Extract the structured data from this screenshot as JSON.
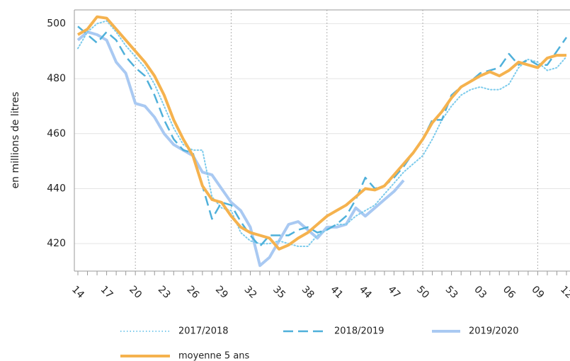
{
  "chart_data": {
    "type": "line",
    "y_label": "en millions de litres",
    "categories": [
      "14",
      null,
      null,
      "17",
      null,
      null,
      "20",
      null,
      null,
      "23",
      null,
      null,
      "26",
      null,
      null,
      "29",
      null,
      null,
      "32",
      null,
      null,
      "35",
      null,
      null,
      "38",
      null,
      null,
      "41",
      null,
      null,
      "44",
      null,
      null,
      "47",
      null,
      null,
      "50",
      null,
      null,
      "53",
      null,
      null,
      "03",
      null,
      null,
      "06",
      null,
      null,
      "09",
      null,
      null,
      "12"
    ],
    "ylim": [
      410,
      505
    ],
    "yticks": [
      420,
      440,
      460,
      480,
      500
    ],
    "grid": true,
    "legend": "bottom",
    "series": [
      {
        "name": "2017/2018",
        "color": "#7ccbec",
        "style": "dotted",
        "values": [
          491,
          497,
          500,
          501,
          497,
          492,
          488,
          484,
          478,
          470,
          462,
          456,
          454,
          454,
          437,
          433,
          432,
          424,
          421,
          420,
          420,
          421,
          420,
          419,
          419,
          423,
          425,
          427,
          427,
          430,
          432,
          434,
          438,
          442,
          446,
          449,
          452,
          458,
          465,
          470,
          474,
          476,
          477,
          476,
          476,
          478,
          484,
          487,
          486,
          483,
          484,
          488
        ]
      },
      {
        "name": "2018/2019",
        "color": "#4fb0da",
        "style": "dashed",
        "values": [
          499,
          496,
          493,
          497,
          494,
          488,
          484,
          481,
          474,
          465,
          458,
          454,
          453,
          441,
          429,
          435,
          434,
          428,
          423,
          419,
          423,
          423,
          423,
          425,
          426,
          424,
          425,
          427,
          430,
          436,
          444,
          440,
          441,
          444,
          448,
          453,
          458,
          465,
          465,
          474,
          477,
          479,
          482,
          483,
          484,
          489,
          485,
          487,
          485,
          485,
          490,
          495
        ]
      },
      {
        "name": "2019/2020",
        "color": "#a9c9f2",
        "style": "solid",
        "values": [
          494,
          497,
          496,
          494,
          486,
          482,
          471,
          470,
          466,
          460,
          456,
          454,
          452,
          446,
          445,
          440,
          435,
          432,
          426,
          412,
          415,
          421,
          427,
          428,
          425,
          422,
          426,
          426,
          427,
          433,
          430,
          433,
          436,
          439,
          443,
          null,
          null,
          null,
          null,
          null,
          null,
          null,
          null,
          null,
          null,
          null,
          null,
          null,
          null,
          null,
          null,
          null
        ]
      },
      {
        "name": "moyenne 5 ans",
        "color": "#f5b24e",
        "style": "solid",
        "values": [
          496,
          498,
          502.5,
          502,
          498,
          494,
          490,
          486,
          481,
          474,
          465,
          458,
          452,
          441,
          436,
          435,
          430,
          426,
          424,
          423,
          422,
          418,
          419.5,
          422,
          424,
          427,
          430,
          432,
          434,
          437,
          440,
          439.5,
          441,
          445,
          449,
          453,
          458,
          464,
          468,
          473,
          477,
          479,
          481,
          482.5,
          481,
          483,
          486,
          485,
          484,
          487.5,
          488.5,
          488.5
        ]
      }
    ]
  }
}
